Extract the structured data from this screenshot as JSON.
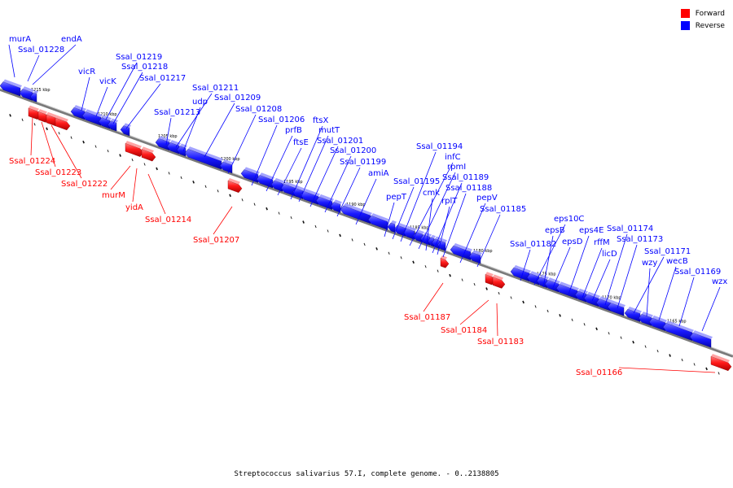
{
  "colors": {
    "forward": "#ff0000",
    "reverse": "#0000ff",
    "backbone": "#888888"
  },
  "legend": [
    {
      "label": "Forward",
      "color": "#ff0000"
    },
    {
      "label": "Reverse",
      "color": "#0000ff"
    }
  ],
  "caption": "Streptococcus salivarius 57.I, complete genome. - 0..2138805",
  "ticks": [
    "1215 kbp",
    "1210 kbp",
    "1205 kbp",
    "1200 kbp",
    "1195 kbp",
    "1190 kbp",
    "1185 kbp",
    "1180 kbp",
    "1175 kbp",
    "1170 kbp",
    "1165 kbp"
  ],
  "genes": [
    {
      "name": "murA",
      "strand": "reverse"
    },
    {
      "name": "Ssal_01228",
      "strand": "reverse"
    },
    {
      "name": "endA",
      "strand": "reverse"
    },
    {
      "name": "vicR",
      "strand": "reverse"
    },
    {
      "name": "vicK",
      "strand": "reverse"
    },
    {
      "name": "Ssal_01219",
      "strand": "reverse"
    },
    {
      "name": "Ssal_01218",
      "strand": "reverse"
    },
    {
      "name": "Ssal_01217",
      "strand": "reverse"
    },
    {
      "name": "Ssal_01213",
      "strand": "reverse"
    },
    {
      "name": "Ssal_01211",
      "strand": "reverse"
    },
    {
      "name": "udp",
      "strand": "reverse"
    },
    {
      "name": "Ssal_01209",
      "strand": "reverse"
    },
    {
      "name": "Ssal_01208",
      "strand": "reverse"
    },
    {
      "name": "Ssal_01206",
      "strand": "reverse"
    },
    {
      "name": "prfB",
      "strand": "reverse"
    },
    {
      "name": "ftsE",
      "strand": "reverse"
    },
    {
      "name": "ftsX",
      "strand": "reverse"
    },
    {
      "name": "mutT",
      "strand": "reverse"
    },
    {
      "name": "Ssal_01201",
      "strand": "reverse"
    },
    {
      "name": "Ssal_01200",
      "strand": "reverse"
    },
    {
      "name": "Ssal_01199",
      "strand": "reverse"
    },
    {
      "name": "amiA",
      "strand": "reverse"
    },
    {
      "name": "pepT",
      "strand": "reverse"
    },
    {
      "name": "Ssal_01195",
      "strand": "reverse"
    },
    {
      "name": "Ssal_01194",
      "strand": "reverse"
    },
    {
      "name": "infC",
      "strand": "reverse"
    },
    {
      "name": "rpmI",
      "strand": "reverse"
    },
    {
      "name": "cmk",
      "strand": "reverse"
    },
    {
      "name": "Ssal_01189",
      "strand": "reverse"
    },
    {
      "name": "rplT",
      "strand": "reverse"
    },
    {
      "name": "Ssal_01188",
      "strand": "reverse"
    },
    {
      "name": "pepV",
      "strand": "reverse"
    },
    {
      "name": "Ssal_01185",
      "strand": "reverse"
    },
    {
      "name": "Ssal_01182",
      "strand": "reverse"
    },
    {
      "name": "eps10C",
      "strand": "reverse"
    },
    {
      "name": "epsB",
      "strand": "reverse"
    },
    {
      "name": "epsD",
      "strand": "reverse"
    },
    {
      "name": "eps4E",
      "strand": "reverse"
    },
    {
      "name": "rffM",
      "strand": "reverse"
    },
    {
      "name": "licD",
      "strand": "reverse"
    },
    {
      "name": "Ssal_01174",
      "strand": "reverse"
    },
    {
      "name": "Ssal_01173",
      "strand": "reverse"
    },
    {
      "name": "Ssal_01171",
      "strand": "reverse"
    },
    {
      "name": "wzy",
      "strand": "reverse"
    },
    {
      "name": "wecB",
      "strand": "reverse"
    },
    {
      "name": "Ssal_01169",
      "strand": "reverse"
    },
    {
      "name": "wzx",
      "strand": "reverse"
    },
    {
      "name": "Ssal_01224",
      "strand": "forward"
    },
    {
      "name": "Ssal_01223",
      "strand": "forward"
    },
    {
      "name": "Ssal_01222",
      "strand": "forward"
    },
    {
      "name": "murM",
      "strand": "forward"
    },
    {
      "name": "yidA",
      "strand": "forward"
    },
    {
      "name": "Ssal_01214",
      "strand": "forward"
    },
    {
      "name": "Ssal_01207",
      "strand": "forward"
    },
    {
      "name": "Ssal_01187",
      "strand": "forward"
    },
    {
      "name": "Ssal_01184",
      "strand": "forward"
    },
    {
      "name": "Ssal_01183",
      "strand": "forward"
    },
    {
      "name": "Ssal_01166",
      "strand": "forward"
    }
  ]
}
